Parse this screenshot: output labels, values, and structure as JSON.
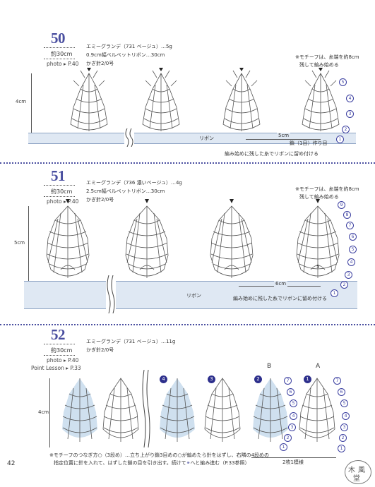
{
  "page_number": "42",
  "sections": [
    {
      "number": "50",
      "size": "約30cm",
      "photo": "photo ▸ P.40",
      "materials": [
        "エミーグランデ（731 ベージュ）…5g",
        "0.9cm幅ベルベットリボン…30cm",
        "かぎ針2/0号"
      ],
      "note": [
        "※モチーフは、糸端を約8cm",
        "残して編み始める"
      ],
      "height_label": "4cm",
      "ribbon_label": "リボン",
      "spacing_label": "5cm",
      "chain_label": "鎖（1目）作り目",
      "attach_label": "編み始めに残した糸でリボンに留め付ける",
      "rows": [
        "1",
        "2",
        "3",
        "4",
        "5"
      ]
    },
    {
      "number": "51",
      "size": "約30cm",
      "photo": "photo ▸ P.40",
      "materials": [
        "エミーグランデ（736 濃いベージュ）…4g",
        "2.5cm幅ベルベットリボン…30cm",
        "かぎ針2/0号"
      ],
      "note": [
        "※モチーフは、糸端を約8cm",
        "残して編み始める"
      ],
      "height_label": "5cm",
      "ribbon_label": "リボン",
      "spacing_label": "6cm",
      "ring_label": "5",
      "attach_label": "編み始めに残した糸でリボンに留め付ける",
      "rows": [
        "1",
        "2",
        "3",
        "4",
        "5",
        "6",
        "7",
        "8",
        "9"
      ]
    },
    {
      "number": "52",
      "size": "約30cm",
      "photo": "photo ▸ P.40",
      "point_lesson": "Point Lesson ▸ P.33",
      "materials": [
        "エミーグランデ（731 ベージュ）…11g",
        "かぎ針2/0号"
      ],
      "height_label": "4cm",
      "label_a": "A",
      "label_b": "B",
      "order_nums": [
        "4",
        "3",
        "2",
        "1"
      ],
      "rows": [
        "1",
        "2",
        "3",
        "4",
        "5",
        "6",
        "7"
      ],
      "pair_label": "2枚1模様",
      "footnote": [
        "※モチーフのつなぎ方○（3段め）…立ち上がり鎖3目めの○が編めたら針をはずし、右隣の4段めの",
        "指定位置に針を入れて、はずした鎖の目を引き出す。続けて",
        "へと編み進む（P.33参照）"
      ],
      "footnote_glyph": "⚭"
    }
  ],
  "stamp_text": [
    "木",
    "風",
    "堂"
  ],
  "colors": {
    "accent": "#4a4fa0",
    "ribbon": "#dfe8f3",
    "motif_fill": "#cfe0ef",
    "stitch": "#555555"
  }
}
